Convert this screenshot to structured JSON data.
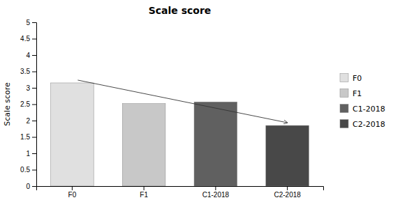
{
  "chart_data": {
    "type": "bar",
    "title": "Scale score",
    "ylabel": "Scale score",
    "categories": [
      "F0",
      "F1",
      "C1-2018",
      "C2-2018"
    ],
    "values": [
      3.15,
      2.52,
      2.57,
      1.85
    ],
    "colors": [
      "#e0e0e0",
      "#c8c8c8",
      "#606060",
      "#484848"
    ],
    "ylim": [
      0,
      5
    ],
    "yticks": [
      0,
      0.5,
      1,
      1.5,
      2,
      2.5,
      3,
      3.5,
      4,
      4.5,
      5
    ],
    "grid": false,
    "legend": "right"
  }
}
